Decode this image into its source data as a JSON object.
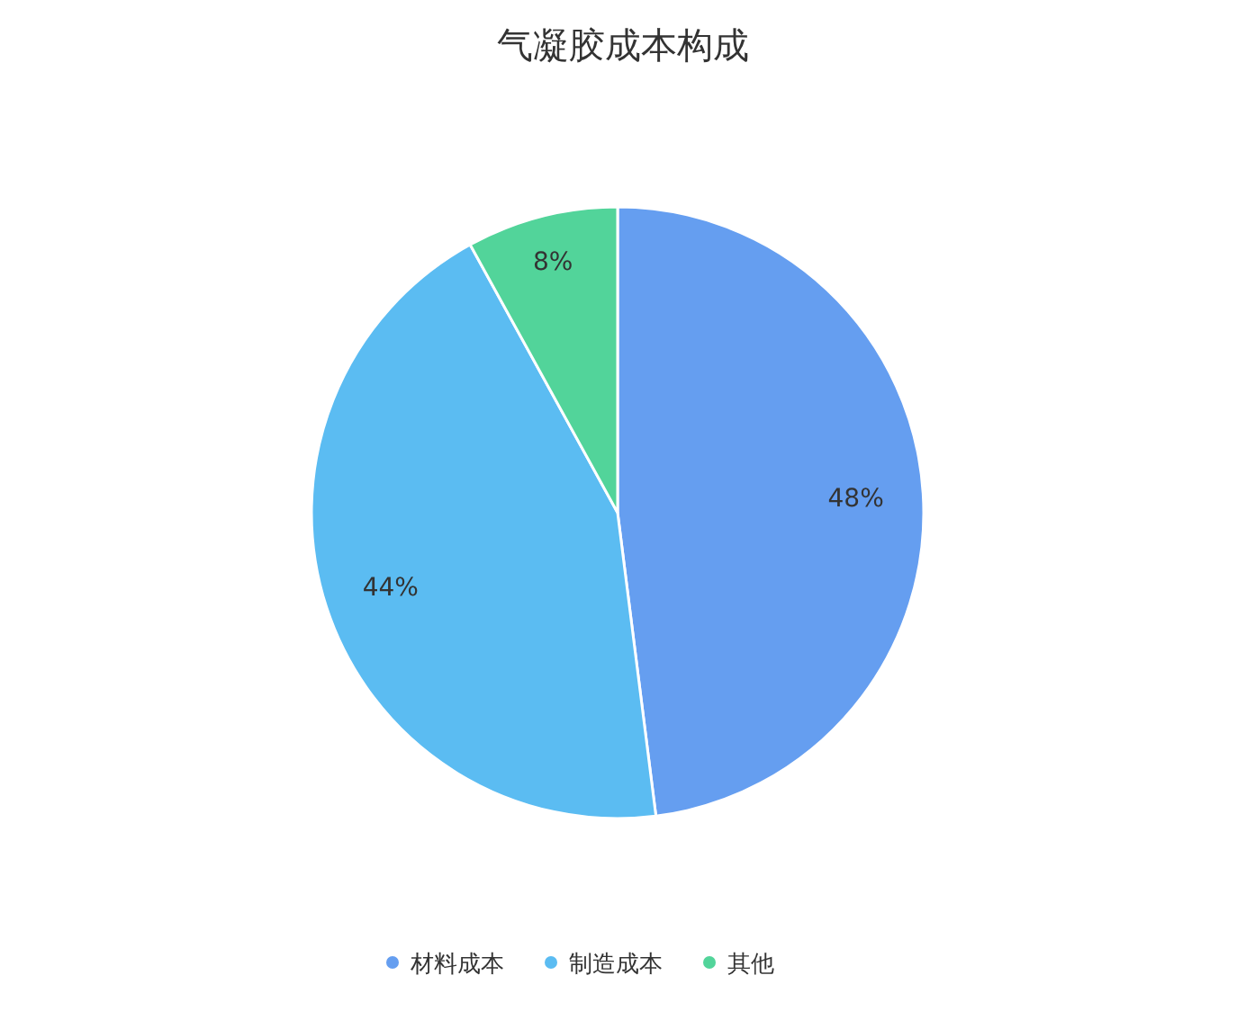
{
  "chart_data": {
    "type": "pie",
    "title": "气凝胶成本构成",
    "categories": [
      "材料成本",
      "制造成本",
      "其他"
    ],
    "values": [
      48,
      44,
      8
    ],
    "colors": [
      "#659ef0",
      "#5bbcf2",
      "#52d49a"
    ],
    "value_labels": [
      "48%",
      "44%",
      "8%"
    ],
    "legend": "bottom"
  }
}
